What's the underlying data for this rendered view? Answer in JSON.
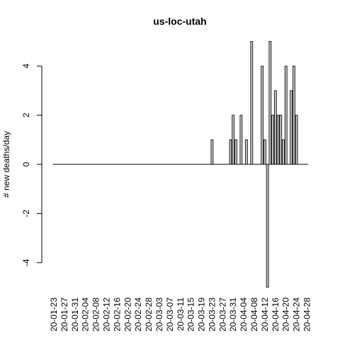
{
  "chart_data": {
    "type": "bar",
    "title": "us-loc-utah",
    "xlabel": "",
    "ylabel": "# new deaths/day",
    "ylim": [
      -5,
      5
    ],
    "y_ticks": [
      -4,
      -2,
      0,
      2,
      4
    ],
    "grid": false,
    "legend": "none",
    "bar_fill": "#c0c0c0",
    "bar_stroke": "#000000",
    "x_start_date": "2020-01-23",
    "x_tick_labels": [
      "20-01-23",
      "20-01-27",
      "20-01-31",
      "20-02-04",
      "20-02-08",
      "20-02-12",
      "20-02-16",
      "20-02-20",
      "20-02-24",
      "20-02-28",
      "20-03-03",
      "20-03-07",
      "20-03-11",
      "20-03-15",
      "20-03-19",
      "20-03-23",
      "20-03-27",
      "20-03-31",
      "20-04-04",
      "20-04-08",
      "20-04-12",
      "20-04-16",
      "20-04-20",
      "20-04-24",
      "20-04-28"
    ],
    "categories": [
      "20-01-23",
      "20-01-24",
      "20-01-25",
      "20-01-26",
      "20-01-27",
      "20-01-28",
      "20-01-29",
      "20-01-30",
      "20-01-31",
      "20-02-01",
      "20-02-02",
      "20-02-03",
      "20-02-04",
      "20-02-05",
      "20-02-06",
      "20-02-07",
      "20-02-08",
      "20-02-09",
      "20-02-10",
      "20-02-11",
      "20-02-12",
      "20-02-13",
      "20-02-14",
      "20-02-15",
      "20-02-16",
      "20-02-17",
      "20-02-18",
      "20-02-19",
      "20-02-20",
      "20-02-21",
      "20-02-22",
      "20-02-23",
      "20-02-24",
      "20-02-25",
      "20-02-26",
      "20-02-27",
      "20-02-28",
      "20-02-29",
      "20-03-01",
      "20-03-02",
      "20-03-03",
      "20-03-04",
      "20-03-05",
      "20-03-06",
      "20-03-07",
      "20-03-08",
      "20-03-09",
      "20-03-10",
      "20-03-11",
      "20-03-12",
      "20-03-13",
      "20-03-14",
      "20-03-15",
      "20-03-16",
      "20-03-17",
      "20-03-18",
      "20-03-19",
      "20-03-20",
      "20-03-21",
      "20-03-22",
      "20-03-23",
      "20-03-24",
      "20-03-25",
      "20-03-26",
      "20-03-27",
      "20-03-28",
      "20-03-29",
      "20-03-30",
      "20-03-31",
      "20-04-01",
      "20-04-02",
      "20-04-03",
      "20-04-04",
      "20-04-05",
      "20-04-06",
      "20-04-07",
      "20-04-08",
      "20-04-09",
      "20-04-10",
      "20-04-11",
      "20-04-12",
      "20-04-13",
      "20-04-14",
      "20-04-15",
      "20-04-16",
      "20-04-17",
      "20-04-18",
      "20-04-19",
      "20-04-20",
      "20-04-21",
      "20-04-22",
      "20-04-23",
      "20-04-24",
      "20-04-25",
      "20-04-26",
      "20-04-27",
      "20-04-28"
    ],
    "values": [
      0,
      0,
      0,
      0,
      0,
      0,
      0,
      0,
      0,
      0,
      0,
      0,
      0,
      0,
      0,
      0,
      0,
      0,
      0,
      0,
      0,
      0,
      0,
      0,
      0,
      0,
      0,
      0,
      0,
      0,
      0,
      0,
      0,
      0,
      0,
      0,
      0,
      0,
      0,
      0,
      0,
      0,
      0,
      0,
      0,
      0,
      0,
      0,
      0,
      0,
      0,
      0,
      0,
      0,
      0,
      0,
      0,
      0,
      0,
      0,
      1,
      0,
      0,
      0,
      0,
      0,
      0,
      1,
      2,
      1,
      0,
      2,
      0,
      1,
      0,
      5,
      0,
      0,
      0,
      4,
      1,
      -5,
      5,
      2,
      3,
      2,
      2,
      1,
      4,
      0,
      3,
      4,
      2,
      0,
      0,
      0,
      0
    ]
  }
}
